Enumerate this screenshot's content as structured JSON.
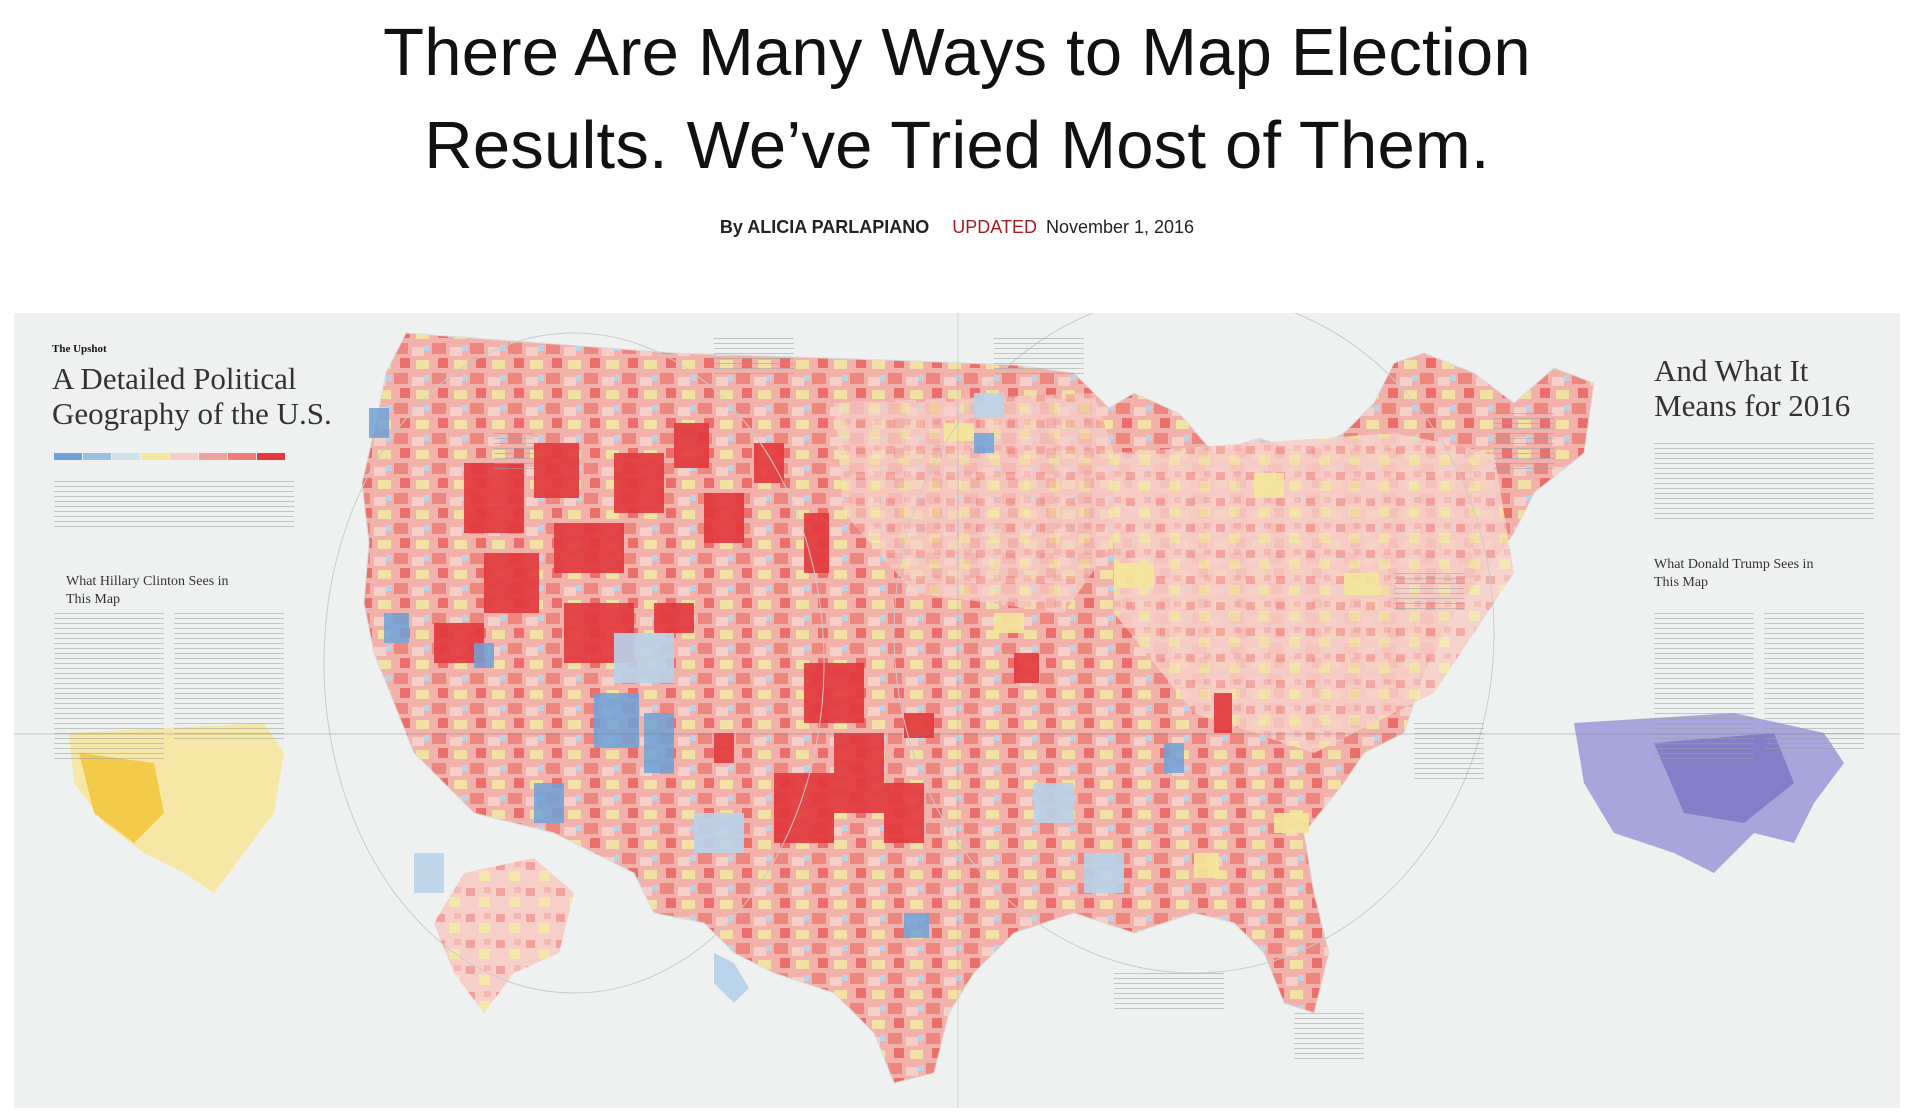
{
  "article": {
    "headline_line1": "There Are Many Ways to Map Election",
    "headline_line2": "Results. We’ve Tried Most of Them.",
    "byline_prefix": "By ALICIA PARLAPIANO",
    "updated_label": "UPDATED",
    "date": "November 1, 2016"
  },
  "newspaper_map": {
    "kicker": "The Upshot",
    "title_left": "A Detailed Political Geography of the U.S.",
    "title_right": "And What It Means for 2016",
    "subhead_clinton": "What Hillary Clinton Sees in This Map",
    "subhead_trump": "What Donald Trump Sees in This Map",
    "colors": {
      "strong_red": "#e2383c",
      "red": "#ee7e7b",
      "light_red": "#f4b5b0",
      "yellow": "#f3e79a",
      "light_blue": "#b9d3ea",
      "blue": "#6fa2d8",
      "inset_hispanic": "#f2c43a",
      "inset_white": "#7b78c4",
      "paper": "#eef1ef"
    }
  }
}
